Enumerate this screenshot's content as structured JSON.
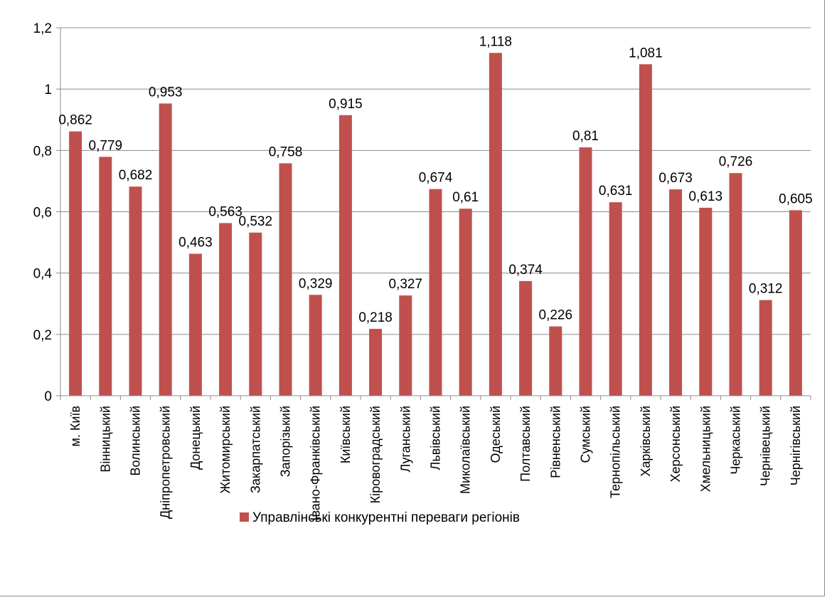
{
  "chart_data": {
    "type": "bar",
    "title": "",
    "xlabel": "",
    "ylabel": "",
    "ylim": [
      0,
      1.2
    ],
    "yticks": [
      0,
      0.2,
      0.4,
      0.6,
      0.8,
      1,
      1.2
    ],
    "ytick_labels": [
      "0",
      "0,2",
      "0,4",
      "0,6",
      "0,8",
      "1",
      "1,2"
    ],
    "grid": true,
    "legend_position": "bottom",
    "categories": [
      "м. Київ",
      "Вінницький",
      "Волинський",
      "Дніпропетровський",
      "Донецький",
      "Житомирський",
      "Закарпатський",
      "Запорізький",
      "Івано-Франківський",
      "Київський",
      "Кіровоградський",
      "Луганський",
      "Львівський",
      "Миколаївський",
      "Одеський",
      "Полтавський",
      "Рівненський",
      "Сумський",
      "Тернопільський",
      "Харківський",
      "Херсонський",
      "Хмельницький",
      "Черкаський",
      "Чернівецький",
      "Чернігівський"
    ],
    "series": [
      {
        "name": "Управлінські конкурентні переваги регіонів",
        "color": "#c0504d",
        "values": [
          0.862,
          0.779,
          0.682,
          0.953,
          0.463,
          0.563,
          0.532,
          0.758,
          0.329,
          0.915,
          0.218,
          0.327,
          0.674,
          0.61,
          1.118,
          0.374,
          0.226,
          0.81,
          0.631,
          1.081,
          0.673,
          0.613,
          0.726,
          0.312,
          0.605
        ],
        "labels": [
          "0,862",
          "0,779",
          "0,682",
          "0,953",
          "0,463",
          "0,563",
          "0,532",
          "0,758",
          "0,329",
          "0,915",
          "0,218",
          "0,327",
          "0,674",
          "0,61",
          "1,118",
          "0,374",
          "0,226",
          "0,81",
          "0,631",
          "1,081",
          "0,673",
          "0,613",
          "0,726",
          "0,312",
          "0,605"
        ]
      }
    ]
  }
}
